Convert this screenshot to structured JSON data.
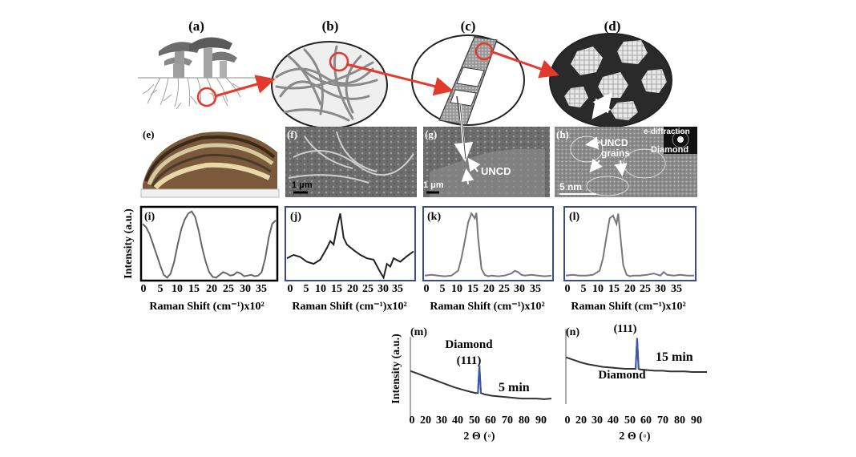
{
  "panel_labels": {
    "a": "(a)",
    "b": "(b)",
    "c": "(c)",
    "d": "(d)",
    "e": "(e)",
    "f": "(f)",
    "g": "(g)",
    "h": "(h)",
    "i": "(i)",
    "j": "(j)",
    "k": "(k)",
    "l": "(l)",
    "m": "(m)",
    "n": "(n)"
  },
  "micrographs": {
    "f_scale": "1 μm",
    "g_scale": "1 μm",
    "g_label": "UNCD",
    "h_uncd": "UNCD",
    "h_grains": "grains",
    "h_ediff": "e-diffraction",
    "h_diamond": "Diamond",
    "h_scale": "5 nm"
  },
  "raman_ylabel": "Intensity (a.u.)",
  "xrd_ylabel": "Intensity (a.u.)",
  "chart_data": [
    {
      "id": "i",
      "type": "line",
      "xlabel": "Raman Shift (cm⁻¹)x10²",
      "xticks": [
        "0",
        "5",
        "10",
        "15",
        "20",
        "25",
        "30",
        "35"
      ],
      "xlim": [
        0,
        38
      ],
      "x": [
        0,
        1,
        2,
        3,
        4,
        5,
        6,
        7,
        8,
        9,
        10,
        11,
        12,
        13,
        14,
        15,
        16,
        17,
        18,
        19,
        20,
        21,
        22,
        23,
        24,
        25,
        26,
        27,
        28,
        29,
        30,
        31,
        32,
        33,
        34,
        35,
        36,
        37,
        38
      ],
      "y": [
        0.8,
        0.75,
        0.65,
        0.5,
        0.35,
        0.2,
        0.06,
        0.02,
        0.08,
        0.25,
        0.5,
        0.72,
        0.86,
        0.95,
        0.98,
        0.9,
        0.7,
        0.45,
        0.25,
        0.1,
        0.03,
        0.02,
        0.06,
        0.1,
        0.08,
        0.05,
        0.06,
        0.1,
        0.08,
        0.04,
        0.05,
        0.06,
        0.04,
        0.05,
        0.1,
        0.3,
        0.6,
        0.8,
        0.85
      ]
    },
    {
      "id": "j",
      "type": "line",
      "xlabel": "Raman Shift (cm⁻¹)x10²",
      "xticks": [
        "0",
        "5",
        "10",
        "15",
        "20",
        "25",
        "30",
        "35"
      ],
      "xlim": [
        0,
        38
      ],
      "x": [
        0,
        2,
        4,
        6,
        8,
        10,
        12,
        13,
        14,
        15,
        16,
        17,
        18,
        20,
        22,
        24,
        26,
        28,
        29,
        30,
        31,
        32,
        34,
        36,
        38
      ],
      "y": [
        0.3,
        0.35,
        0.32,
        0.25,
        0.22,
        0.28,
        0.45,
        0.55,
        0.5,
        0.75,
        0.95,
        0.6,
        0.5,
        0.42,
        0.35,
        0.3,
        0.28,
        0.1,
        0.02,
        0.22,
        0.18,
        0.3,
        0.25,
        0.33,
        0.4
      ]
    },
    {
      "id": "k",
      "type": "line",
      "xlabel": "Raman Shift (cm⁻¹)x10²",
      "xticks": [
        "0",
        "5",
        "10",
        "15",
        "20",
        "25",
        "30",
        "35"
      ],
      "xlim": [
        0,
        38
      ],
      "x": [
        0,
        2,
        4,
        6,
        8,
        10,
        11,
        12,
        13,
        14,
        15,
        15.5,
        16,
        17,
        18,
        19,
        20,
        22,
        24,
        26,
        27,
        28,
        29,
        30,
        32,
        34,
        36,
        38
      ],
      "y": [
        0.05,
        0.06,
        0.05,
        0.04,
        0.05,
        0.12,
        0.3,
        0.55,
        0.82,
        0.95,
        0.88,
        0.96,
        0.6,
        0.15,
        0.06,
        0.04,
        0.05,
        0.04,
        0.05,
        0.08,
        0.12,
        0.1,
        0.06,
        0.05,
        0.06,
        0.05,
        0.04,
        0.05
      ]
    },
    {
      "id": "l",
      "type": "line",
      "xlabel": "Raman Shift (cm⁻¹)x10²",
      "xticks": [
        "0",
        "5",
        "10",
        "15",
        "20",
        "25",
        "30",
        "35"
      ],
      "xlim": [
        0,
        38
      ],
      "x": [
        0,
        2,
        4,
        6,
        8,
        10,
        11,
        12,
        13,
        14,
        15,
        15.5,
        16,
        17,
        18,
        19,
        20,
        22,
        24,
        26,
        28,
        29,
        30,
        32,
        34,
        36,
        38
      ],
      "y": [
        0.05,
        0.06,
        0.05,
        0.05,
        0.06,
        0.12,
        0.3,
        0.6,
        0.88,
        0.92,
        0.8,
        0.95,
        0.7,
        0.2,
        0.06,
        0.04,
        0.05,
        0.05,
        0.06,
        0.08,
        0.05,
        0.1,
        0.06,
        0.05,
        0.06,
        0.05,
        0.05
      ]
    },
    {
      "id": "m",
      "type": "line",
      "xlabel": "2 Θ (◦)",
      "xticks": [
        "0",
        "20",
        "30",
        "40",
        "50",
        "60",
        "70",
        "80",
        "90"
      ],
      "xlim": [
        0,
        95
      ],
      "x": [
        0,
        5,
        10,
        15,
        20,
        25,
        30,
        35,
        40,
        44,
        45.5,
        46.5,
        47.5,
        50,
        55,
        60,
        65,
        70,
        75,
        80,
        85,
        90,
        95
      ],
      "y": [
        0.62,
        0.58,
        0.54,
        0.5,
        0.46,
        0.42,
        0.38,
        0.35,
        0.32,
        0.3,
        0.3,
        0.7,
        0.3,
        0.28,
        0.26,
        0.25,
        0.24,
        0.23,
        0.22,
        0.22,
        0.22,
        0.21,
        0.22
      ],
      "peak_label": "Diamond",
      "peak_index": "(111)",
      "time_label": "5 min"
    },
    {
      "id": "n",
      "type": "line",
      "xlabel": "2 Θ (◦)",
      "xticks": [
        "0",
        "20",
        "30",
        "40",
        "50",
        "60",
        "70",
        "80",
        "90"
      ],
      "xlim": [
        0,
        95
      ],
      "x": [
        0,
        5,
        10,
        15,
        20,
        25,
        30,
        35,
        40,
        45,
        47,
        48,
        49,
        50,
        55,
        60,
        65,
        70,
        75,
        80,
        85,
        90,
        95
      ],
      "y": [
        0.68,
        0.64,
        0.6,
        0.57,
        0.55,
        0.53,
        0.52,
        0.51,
        0.5,
        0.5,
        0.5,
        0.98,
        0.5,
        0.49,
        0.48,
        0.47,
        0.47,
        0.46,
        0.46,
        0.46,
        0.45,
        0.45,
        0.45
      ],
      "peak_label": "Diamond",
      "peak_index": "(111)",
      "time_label": "15 min"
    }
  ]
}
